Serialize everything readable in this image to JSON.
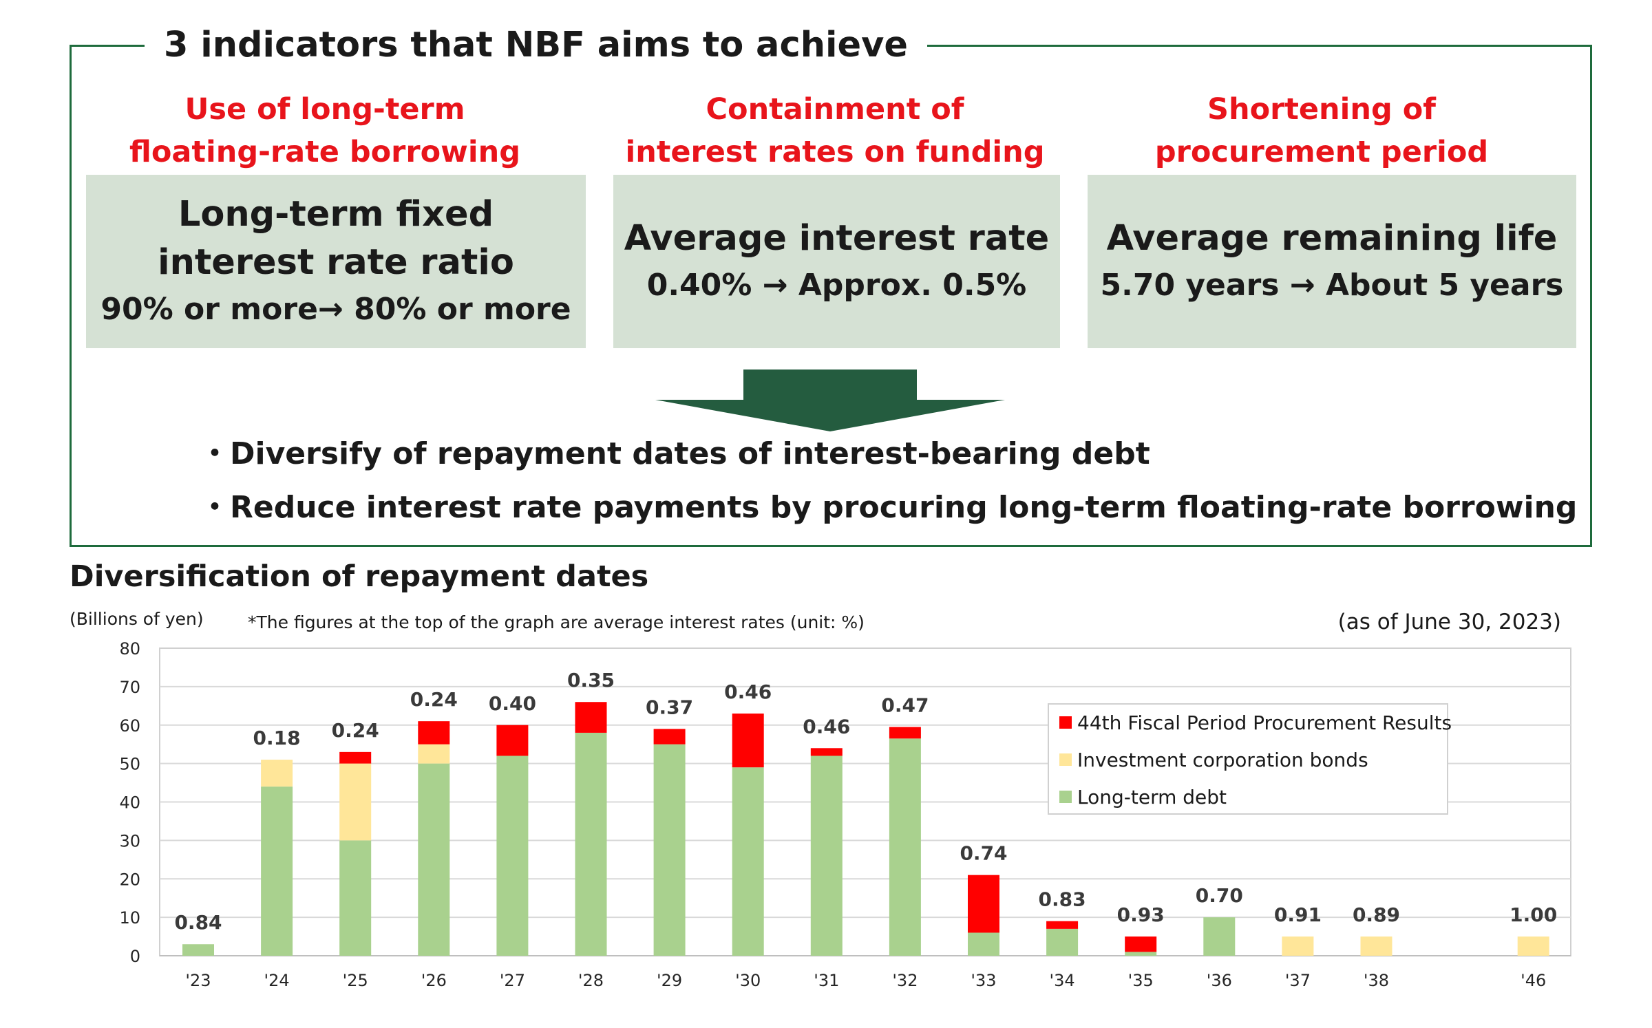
{
  "header": {
    "title": "3 indicators that NBF aims to achieve"
  },
  "indicators": [
    {
      "heading_line1": "Use of long-term",
      "heading_line2": "floating-rate borrowing",
      "box_line1": "Long-term fixed",
      "box_line2": "interest rate ratio",
      "box_value": "90% or more→  80% or more"
    },
    {
      "heading_line1": "Containment of",
      "heading_line2": "interest rates on funding",
      "box_line1": "Average interest rate",
      "box_value": "0.40%  →  Approx. 0.5%"
    },
    {
      "heading_line1": "Shortening of",
      "heading_line2": "procurement period",
      "box_line1": "Average remaining life",
      "box_value": "5.70 years  →  About 5 years"
    }
  ],
  "bullets": [
    "・Diversify of repayment dates of interest-bearing debt",
    "・Reduce interest rate payments by procuring long-term floating-rate borrowing"
  ],
  "colors": {
    "frame": "#1e6b3c",
    "arrow": "#245c3f",
    "heading": "#e8141b",
    "box": "#d5e1d4"
  },
  "chart_data": {
    "type": "bar",
    "stacked": true,
    "title": "Diversification of repayment dates",
    "ylabel": "(Billions of yen)",
    "note": "*The figures at the top of the graph are average interest rates (unit: %)",
    "as_of": "(as of June 30, 2023)",
    "ylim": [
      0,
      80
    ],
    "yticks": [
      0,
      10,
      20,
      30,
      40,
      50,
      60,
      70,
      80
    ],
    "grid": true,
    "legend_position": "right",
    "categories": [
      "'23",
      "'24",
      "'25",
      "'26",
      "'27",
      "'28",
      "'29",
      "'30",
      "'31",
      "'32",
      "'33",
      "'34",
      "'35",
      "'36",
      "'37",
      "'38",
      "'46"
    ],
    "series": [
      {
        "name": "Long-term debt",
        "color": "#a9d18e",
        "values": [
          3,
          44,
          30,
          50,
          52,
          58,
          55,
          49,
          52,
          56.5,
          6,
          7,
          1,
          10,
          0,
          0,
          0
        ]
      },
      {
        "name": "Investment corporation bonds",
        "color": "#ffe699",
        "values": [
          0,
          7,
          20,
          5,
          0,
          0,
          0,
          0,
          0,
          0,
          0,
          0,
          0,
          0,
          5,
          5,
          5
        ]
      },
      {
        "name": "44th Fiscal Period Procurement Results",
        "color": "#ff0000",
        "values": [
          0,
          0,
          3,
          6,
          8,
          8,
          4,
          14,
          2,
          3,
          15,
          2,
          4,
          0,
          0,
          0,
          0
        ]
      }
    ],
    "legend_order": [
      "44th Fiscal Period Procurement Results",
      "Investment corporation bonds",
      "Long-term debt"
    ],
    "rate_labels": [
      "0.84",
      "0.18",
      "0.24",
      "0.24",
      "0.40",
      "0.35",
      "0.37",
      "0.46",
      "0.46",
      "0.47",
      "0.74",
      "0.83",
      "0.93",
      "0.70",
      "0.91",
      "0.89",
      "1.00"
    ]
  }
}
